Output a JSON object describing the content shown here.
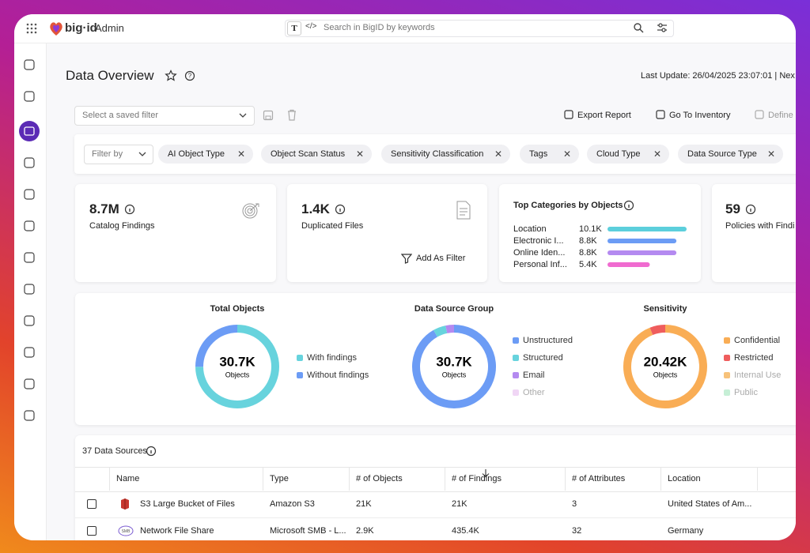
{
  "header": {
    "brand": "big·id",
    "app": "Admin",
    "search_placeholder": "Search in BigID by keywords"
  },
  "page": {
    "title": "Data Overview",
    "last_update": "Last Update: 26/04/2025 23:07:01 | Nex"
  },
  "toolbar": {
    "saved_filter_placeholder": "Select a saved filter",
    "actions": [
      "Export Report",
      "Go To Inventory",
      "Define"
    ]
  },
  "filters": {
    "label": "Filter by",
    "chips": [
      "AI Object Type",
      "Object Scan Status",
      "Sensitivity Classification",
      "Tags",
      "Cloud Type",
      "Data Source Type"
    ]
  },
  "cards": [
    {
      "value": "8.7M",
      "label": "Catalog Findings"
    },
    {
      "value": "1.4K",
      "label": "Duplicated Files",
      "action": "Add As Filter"
    },
    {
      "value": "59",
      "label": "Policies with Findi"
    }
  ],
  "chart_data": [
    {
      "type": "bar",
      "title": "Top Categories by Objects",
      "categories": [
        "Location",
        "Electronic I...",
        "Online Iden...",
        "Personal Inf..."
      ],
      "values": [
        10100,
        8800,
        8800,
        5400
      ],
      "value_labels": [
        "10.1K",
        "8.8K",
        "8.8K",
        "5.4K"
      ],
      "colors": [
        "#5ccfdc",
        "#6c9cf5",
        "#b48af0",
        "#f06bd0"
      ]
    },
    {
      "type": "donut",
      "title": "Total Objects",
      "center_value": "30.7K",
      "center_label": "Objects",
      "categories": [
        "With findings",
        "Without findings"
      ],
      "values": [
        23000,
        7700
      ],
      "colors": [
        "#67d3dd",
        "#6c9cf5"
      ]
    },
    {
      "type": "donut",
      "title": "Data Source Group",
      "center_value": "30.7K",
      "center_label": "Objects",
      "categories": [
        "Unstructured",
        "Structured",
        "Email",
        "Other"
      ],
      "values": [
        28200,
        1500,
        1000,
        0
      ],
      "colors": [
        "#6c9cf5",
        "#67d3dd",
        "#b48af0",
        "#f0d6f5"
      ]
    },
    {
      "type": "donut",
      "title": "Sensitivity",
      "center_value": "20.42K",
      "center_label": "Objects",
      "categories": [
        "Confidential",
        "Restricted",
        "Internal Use",
        "Public"
      ],
      "values": [
        19200,
        1220,
        0,
        0
      ],
      "colors": [
        "#f9ad55",
        "#ef5d5d",
        "#f7c27a",
        "#c6efd6"
      ]
    }
  ],
  "table": {
    "caption": "37 Data Sources",
    "columns": [
      "Name",
      "Type",
      "# of Objects",
      "# of Findings",
      "# of Attributes",
      "Location"
    ],
    "rows": [
      [
        "S3 Large Bucket of Files",
        "Amazon S3",
        "21K",
        "21K",
        "3",
        "United States of Am..."
      ],
      [
        "Network File Share",
        "Microsoft SMB - L...",
        "2.9K",
        "435.4K",
        "32",
        "Germany"
      ]
    ]
  }
}
